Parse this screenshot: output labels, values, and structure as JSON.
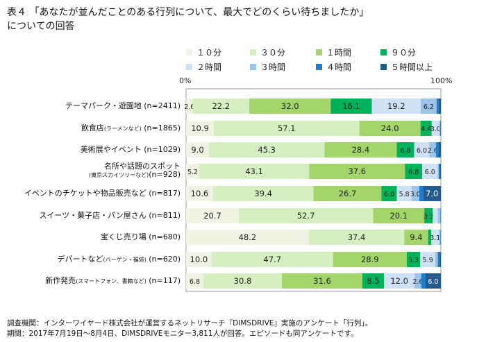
{
  "title_line1": "表４ 「あなたが並んだことのある行列について、最大でどのくらい待ちましたか」",
  "title_line2": "についての回答",
  "footer_line1": "調査機関：インターワイヤード株式会社が運営するネットリサーチ『DIMSDRIVE』実施のアンケート「行列」。",
  "footer_line2": "期間：2017年7月19日～8月4日、DIMSDRIVEモニター3,811人が回答。エピソードも同アンケートです。",
  "chart_data": {
    "type": "bar",
    "orientation": "horizontal-stacked-100",
    "xlim": [
      0,
      100
    ],
    "tick_labels": [
      "0%",
      "100%"
    ],
    "legend_position": "top",
    "categories": [
      {
        "label": "テーマパーク・遊園地",
        "sub": "",
        "n": "(n=2411)"
      },
      {
        "label": "飲食店",
        "sub": "(ラーメンなど)",
        "n": "(n=1865)"
      },
      {
        "label": "美術展やイベント",
        "sub": "",
        "n": "(n=1029)"
      },
      {
        "label": "名所や話題のスポット",
        "sub": "(東京スカイツリーなど)",
        "n": "(n=928)"
      },
      {
        "label": "イベントのチケットや物品販売など",
        "sub": "",
        "n": "(n=817)"
      },
      {
        "label": "スイーツ・菓子店・パン屋さん",
        "sub": "",
        "n": "(n=811)"
      },
      {
        "label": "宝くじ売り場",
        "sub": "",
        "n": "(n=680)"
      },
      {
        "label": "デパートなど",
        "sub": "(バーゲン・福袋)",
        "n": "(n=620)"
      },
      {
        "label": "新作発売",
        "sub": "(スマートフォン、書籍など)",
        "n": "(n=117)"
      }
    ],
    "series": [
      {
        "name": "１０分",
        "color": "#eef3e2",
        "values": [
          2.6,
          10.9,
          9.0,
          5.2,
          10.6,
          20.7,
          48.2,
          10.0,
          6.8
        ]
      },
      {
        "name": "３０分",
        "color": "#d6efc0",
        "values": [
          22.2,
          57.1,
          45.3,
          43.1,
          39.4,
          52.7,
          37.4,
          47.7,
          30.8
        ]
      },
      {
        "name": "１時間",
        "color": "#a3d56a",
        "values": [
          32.0,
          24.0,
          28.4,
          37.6,
          26.7,
          20.1,
          9.4,
          28.9,
          31.6
        ]
      },
      {
        "name": "９０分",
        "color": "#00b25a",
        "values": [
          16.1,
          4.4,
          6.8,
          6.8,
          6.0,
          3.3,
          1.2,
          5.3,
          8.5
        ]
      },
      {
        "name": "２時間",
        "color": "#cfe1f5",
        "values": [
          19.2,
          3.0,
          6.0,
          6.0,
          5.8,
          2.0,
          3.1,
          5.9,
          12.0
        ]
      },
      {
        "name": "３時間",
        "color": "#9dc3ea",
        "values": [
          6.2,
          0.3,
          2.6,
          0.5,
          3.0,
          1.0,
          0.5,
          1.0,
          2.6
        ]
      },
      {
        "name": "４時間",
        "color": "#1a7fd0",
        "values": [
          0.8,
          0.2,
          0.9,
          0.4,
          1.5,
          0.2,
          0.2,
          0.8,
          1.7
        ]
      },
      {
        "name": "５時間以上",
        "color": "#255a8e",
        "values": [
          0.9,
          0.1,
          1.0,
          0.4,
          7.0,
          0.0,
          0.0,
          0.4,
          6.0
        ]
      }
    ]
  }
}
